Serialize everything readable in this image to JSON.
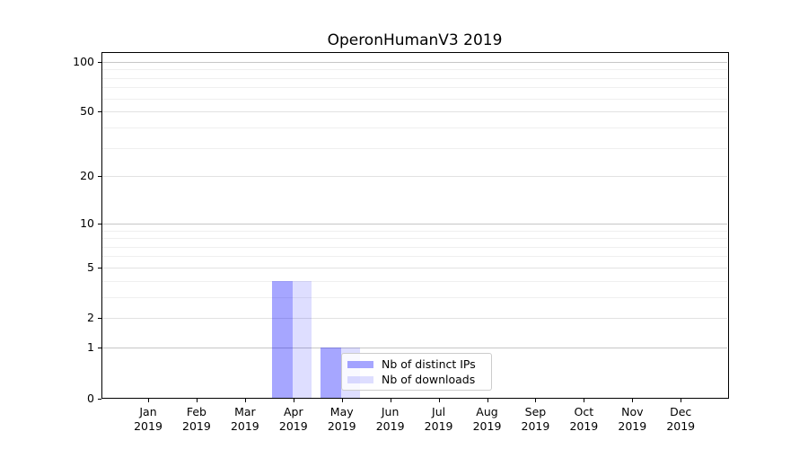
{
  "title": "OperonHumanV3 2019",
  "chart_data": {
    "type": "bar",
    "title": "OperonHumanV3 2019",
    "categories": [
      "Jan 2019",
      "Feb 2019",
      "Mar 2019",
      "Apr 2019",
      "May 2019",
      "Jun 2019",
      "Jul 2019",
      "Aug 2019",
      "Sep 2019",
      "Oct 2019",
      "Nov 2019",
      "Dec 2019"
    ],
    "series": [
      {
        "name": "Nb of distinct IPs",
        "color": "rgba(0,0,255,0.35)",
        "values": [
          0,
          0,
          0,
          4,
          1,
          0,
          0,
          0,
          0,
          0,
          0,
          0
        ]
      },
      {
        "name": "Nb of downloads",
        "color": "rgba(0,0,255,0.13)",
        "values": [
          0,
          0,
          0,
          4,
          1,
          0,
          0,
          0,
          0,
          0,
          0,
          0
        ]
      }
    ],
    "xlabel": "",
    "ylabel": "",
    "yscale": "log1p",
    "ylim": [
      0,
      115
    ],
    "ytick_labels": [
      "0",
      "1",
      "2",
      "5",
      "10",
      "20",
      "50",
      "100"
    ],
    "ytick_values": [
      0,
      1,
      2,
      5,
      10,
      20,
      50,
      100
    ],
    "ytick_minor_values": [
      3,
      4,
      6,
      7,
      8,
      9,
      30,
      40,
      60,
      70,
      80,
      90
    ],
    "grid": true,
    "legend_position": "lower center-right inside plot"
  },
  "legend": {
    "items": [
      {
        "label": "Nb of distinct IPs",
        "color": "rgba(0,0,255,0.35)"
      },
      {
        "label": "Nb of downloads",
        "color": "rgba(0,0,255,0.13)"
      }
    ]
  },
  "colors": {
    "bar_distinct_ips": "rgba(0,0,255,0.35)",
    "bar_downloads": "rgba(0,0,255,0.13)",
    "grid_major": "#c6c6c6",
    "grid_minor": "#efefef",
    "axis": "#000000"
  }
}
